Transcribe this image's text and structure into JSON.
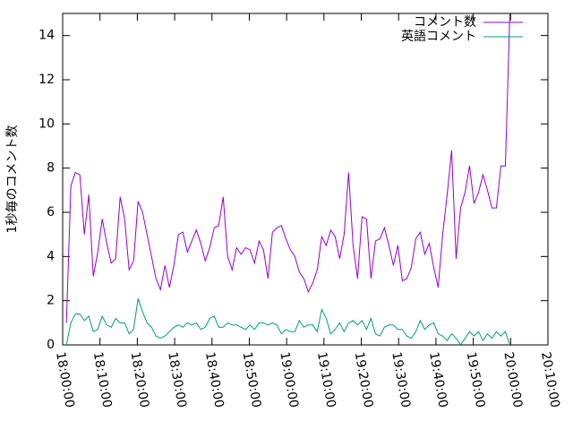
{
  "chart_data": {
    "type": "line",
    "ylabel": "1秒毎のコメント数",
    "x": [
      "18:01:00",
      "18:02:12",
      "18:03:24",
      "18:04:36",
      "18:05:48",
      "18:07:00",
      "18:08:12",
      "18:09:24",
      "18:10:36",
      "18:11:48",
      "18:13:00",
      "18:14:12",
      "18:15:24",
      "18:16:36",
      "18:17:48",
      "18:19:00",
      "18:20:12",
      "18:21:24",
      "18:22:36",
      "18:23:48",
      "18:25:00",
      "18:26:12",
      "18:27:24",
      "18:28:36",
      "18:29:48",
      "18:31:00",
      "18:32:12",
      "18:33:24",
      "18:34:36",
      "18:35:48",
      "18:37:00",
      "18:38:12",
      "18:39:24",
      "18:40:36",
      "18:41:48",
      "18:43:00",
      "18:44:12",
      "18:45:24",
      "18:46:36",
      "18:47:48",
      "18:49:00",
      "18:50:12",
      "18:51:24",
      "18:52:36",
      "18:53:48",
      "18:55:00",
      "18:56:12",
      "18:57:24",
      "18:58:36",
      "18:59:48",
      "19:01:00",
      "19:02:12",
      "19:03:24",
      "19:04:36",
      "19:05:48",
      "19:07:00",
      "19:08:12",
      "19:09:24",
      "19:10:36",
      "19:11:48",
      "19:13:00",
      "19:14:12",
      "19:15:24",
      "19:16:36",
      "19:17:48",
      "19:19:00",
      "19:20:12",
      "19:21:24",
      "19:22:36",
      "19:23:48",
      "19:25:00",
      "19:26:12",
      "19:27:24",
      "19:28:36",
      "19:29:48",
      "19:31:00",
      "19:32:12",
      "19:33:24",
      "19:34:36",
      "19:35:48",
      "19:37:00",
      "19:38:12",
      "19:39:24",
      "19:40:36",
      "19:41:48",
      "19:43:00",
      "19:44:12",
      "19:45:24",
      "19:46:36",
      "19:47:48",
      "19:49:00",
      "19:50:12",
      "19:51:24",
      "19:52:36",
      "19:53:48",
      "19:55:00",
      "19:56:12",
      "19:57:24",
      "19:58:36",
      "19:59:48"
    ],
    "series": [
      {
        "name": "コメント数",
        "color": "#9400d3",
        "values": [
          1.0,
          7.2,
          7.8,
          7.7,
          5.0,
          6.8,
          3.1,
          4.2,
          5.7,
          4.6,
          3.7,
          3.9,
          6.7,
          5.7,
          3.4,
          3.8,
          6.5,
          6.0,
          5.0,
          4.0,
          3.0,
          2.5,
          3.6,
          2.6,
          3.6,
          5.0,
          5.1,
          4.2,
          4.7,
          5.2,
          4.6,
          3.8,
          4.4,
          5.3,
          5.4,
          6.7,
          4.0,
          3.4,
          4.4,
          4.1,
          4.4,
          4.3,
          3.7,
          4.7,
          4.3,
          3.0,
          5.1,
          5.3,
          5.4,
          4.8,
          4.3,
          4.0,
          3.3,
          3.0,
          2.4,
          2.8,
          3.4,
          4.9,
          4.5,
          5.2,
          4.9,
          3.9,
          5.0,
          7.8,
          4.5,
          3.0,
          5.8,
          5.7,
          3.0,
          4.7,
          4.8,
          5.3,
          4.5,
          3.6,
          4.5,
          2.9,
          3.0,
          3.5,
          4.8,
          5.1,
          4.1,
          4.6,
          3.5,
          2.6,
          5.0,
          6.8,
          8.8,
          3.9,
          6.2,
          6.9,
          8.1,
          6.4,
          6.9,
          7.7,
          7.0,
          6.2,
          6.2,
          8.1,
          8.1,
          15
        ]
      },
      {
        "name": "英語コメント",
        "color": "#009e73",
        "values": [
          0,
          1.0,
          1.4,
          1.4,
          1.1,
          1.3,
          0.6,
          0.7,
          1.3,
          0.9,
          0.8,
          1.2,
          1.0,
          1.0,
          0.5,
          0.7,
          2.1,
          1.5,
          1.0,
          0.8,
          0.4,
          0.3,
          0.4,
          0.6,
          0.8,
          0.9,
          0.8,
          1.0,
          0.9,
          1.0,
          0.7,
          0.8,
          1.2,
          1.3,
          0.8,
          0.8,
          1.0,
          0.9,
          0.9,
          0.8,
          0.7,
          0.9,
          0.7,
          1.0,
          1.0,
          0.9,
          1.0,
          0.9,
          0.5,
          0.7,
          0.6,
          0.6,
          1.1,
          0.8,
          0.9,
          0.9,
          0.6,
          1.6,
          1.2,
          0.5,
          0.7,
          1.0,
          0.6,
          1.0,
          1.1,
          0.9,
          1.1,
          0.7,
          1.2,
          0.5,
          0.4,
          0.8,
          0.9,
          0.9,
          0.7,
          0.7,
          0.4,
          0.3,
          0.6,
          1.1,
          0.7,
          0.9,
          1.0,
          0.5,
          0.4,
          0.2,
          0.5,
          0.3,
          0.0,
          0.3,
          0.6,
          0.4,
          0.6,
          0.2,
          0.5,
          0.3,
          0.6,
          0.4,
          0.6,
          0.0
        ]
      }
    ],
    "xlim": [
      "18:00:00",
      "20:10:00"
    ],
    "xticks": [
      "18:00:00",
      "18:10:00",
      "18:20:00",
      "18:30:00",
      "18:40:00",
      "18:50:00",
      "19:00:00",
      "19:10:00",
      "19:20:00",
      "19:30:00",
      "19:40:00",
      "19:50:00",
      "20:00:00",
      "20:10:00"
    ],
    "ylim": [
      0,
      15
    ],
    "yticks": [
      0,
      2,
      4,
      6,
      8,
      10,
      12,
      14
    ],
    "legend": "top-right"
  }
}
